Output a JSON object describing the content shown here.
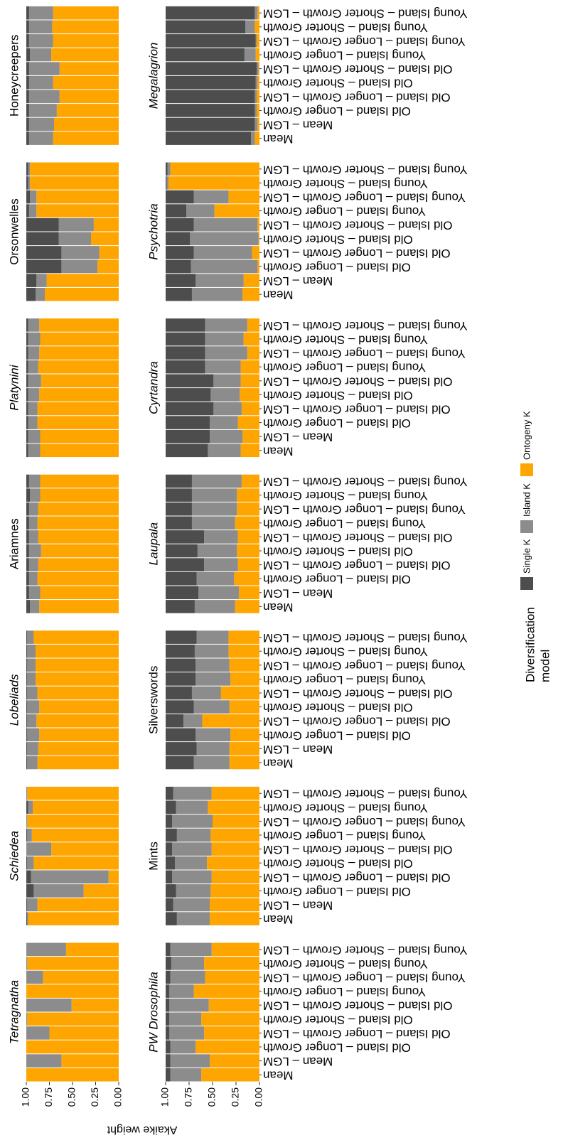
{
  "chart_data": {
    "type": "bar",
    "stacked": true,
    "y_label": "Akaike weight",
    "legend_title": [
      "Diversification",
      "model"
    ],
    "categories": [
      "Mean",
      "Mean – LGM",
      "Old Island – Longer Growth",
      "Old Island – Longer Growth – LGM",
      "Old Island – Shorter Growth",
      "Old Island – Shorter Growth – LGM",
      "Young Island – Longer Growth",
      "Young Island – Longer Growth – LGM",
      "Young Island – Shorter Growth",
      "Young Island – Shorter Growth – LGM"
    ],
    "series": [
      {
        "name": "Single K",
        "color": "#4d4d4d"
      },
      {
        "name": "Island K",
        "color": "#8c8c8c"
      },
      {
        "name": "Ontogeny K",
        "color": "#ffa500"
      }
    ],
    "ylim": [
      0,
      1
    ],
    "yticks": [
      {
        "value": 0,
        "label": "0.00"
      },
      {
        "value": 0.25,
        "label": "0.25"
      },
      {
        "value": 0.5,
        "label": "0.50"
      },
      {
        "value": 0.75,
        "label": "0.75"
      },
      {
        "value": 1,
        "label": "1.00"
      }
    ],
    "facets": [
      {
        "title": "Tetragnatha",
        "italic": true,
        "series": [
          {
            "values": [
              0,
              0,
              0,
              0,
              0,
              0,
              0,
              0,
              0,
              0
            ]
          },
          {
            "values": [
              0,
              0.38,
              0,
              0.25,
              0.01,
              0.49,
              0,
              0.18,
              0.01,
              0.43
            ]
          },
          {
            "values": [
              1,
              0.62,
              1,
              0.75,
              0.99,
              0.51,
              1,
              0.82,
              0.99,
              0.57
            ]
          }
        ]
      },
      {
        "title": "Schiedea",
        "italic": true,
        "series": [
          {
            "values": [
              0.01,
              0.01,
              0.08,
              0.05,
              0.01,
              0,
              0.01,
              0,
              0.02,
              0
            ]
          },
          {
            "values": [
              0.01,
              0.11,
              0.54,
              0.84,
              0.07,
              0.27,
              0.05,
              0.01,
              0.05,
              0.01
            ]
          },
          {
            "values": [
              0.98,
              0.88,
              0.38,
              0.11,
              0.92,
              0.73,
              0.94,
              0.99,
              0.93,
              0.99
            ]
          }
        ]
      },
      {
        "title": "Lobeliads",
        "italic": true,
        "series": [
          {
            "values": [
              0.01,
              0.01,
              0.01,
              0.01,
              0.01,
              0.01,
              0.01,
              0.01,
              0.01,
              0.01
            ]
          },
          {
            "values": [
              0.11,
              0.12,
              0.13,
              0.1,
              0.13,
              0.11,
              0.09,
              0.09,
              0.09,
              0.07
            ]
          },
          {
            "values": [
              0.88,
              0.87,
              0.86,
              0.89,
              0.86,
              0.88,
              0.9,
              0.9,
              0.9,
              0.92
            ]
          }
        ]
      },
      {
        "title": "Ariamnes",
        "italic": false,
        "series": [
          {
            "values": [
              0.04,
              0.03,
              0.03,
              0.03,
              0.03,
              0.03,
              0.03,
              0.03,
              0.04,
              0.03
            ]
          },
          {
            "values": [
              0.1,
              0.12,
              0.09,
              0.1,
              0.13,
              0.1,
              0.09,
              0.1,
              0.11,
              0.12
            ]
          },
          {
            "values": [
              0.86,
              0.85,
              0.88,
              0.87,
              0.84,
              0.87,
              0.88,
              0.87,
              0.85,
              0.85
            ]
          }
        ]
      },
      {
        "title": "Platynini",
        "italic": true,
        "series": [
          {
            "values": [
              0.02,
              0.02,
              0.02,
              0.02,
              0.02,
              0.02,
              0.02,
              0.02,
              0.02,
              0.02
            ]
          },
          {
            "values": [
              0.13,
              0.13,
              0.1,
              0.1,
              0.12,
              0.14,
              0.11,
              0.12,
              0.13,
              0.12
            ]
          },
          {
            "values": [
              0.85,
              0.85,
              0.88,
              0.88,
              0.86,
              0.84,
              0.87,
              0.86,
              0.85,
              0.86
            ]
          }
        ]
      },
      {
        "title": "Orsonwelles",
        "italic": false,
        "series": [
          {
            "values": [
              0.1,
              0.11,
              0.38,
              0.38,
              0.35,
              0.35,
              0.03,
              0.04,
              0.02,
              0.02
            ]
          },
          {
            "values": [
              0.1,
              0.11,
              0.39,
              0.41,
              0.35,
              0.38,
              0.08,
              0.07,
              0.02,
              0.02
            ]
          },
          {
            "values": [
              0.8,
              0.78,
              0.23,
              0.21,
              0.3,
              0.27,
              0.89,
              0.89,
              0.96,
              0.96
            ]
          }
        ]
      },
      {
        "title": "Honeycreepers",
        "italic": false,
        "series": [
          {
            "values": [
              0.03,
              0.03,
              0.03,
              0.03,
              0.03,
              0.03,
              0.04,
              0.03,
              0.03,
              0.03
            ]
          },
          {
            "values": [
              0.26,
              0.27,
              0.3,
              0.33,
              0.26,
              0.33,
              0.23,
              0.26,
              0.25,
              0.26
            ]
          },
          {
            "values": [
              0.71,
              0.7,
              0.67,
              0.64,
              0.71,
              0.64,
              0.73,
              0.71,
              0.72,
              0.71
            ]
          }
        ]
      },
      {
        "title": "PW Drosophila",
        "italic": true,
        "series": [
          {
            "values": [
              0.05,
              0.05,
              0.05,
              0.04,
              0.04,
              0.04,
              0.04,
              0.05,
              0.06,
              0.05
            ]
          },
          {
            "values": [
              0.33,
              0.42,
              0.27,
              0.37,
              0.34,
              0.42,
              0.26,
              0.37,
              0.35,
              0.44
            ]
          },
          {
            "values": [
              0.62,
              0.53,
              0.68,
              0.59,
              0.62,
              0.54,
              0.7,
              0.58,
              0.59,
              0.51
            ]
          }
        ]
      },
      {
        "title": "Mints",
        "italic": false,
        "series": [
          {
            "values": [
              0.12,
              0.08,
              0.11,
              0.07,
              0.1,
              0.07,
              0.12,
              0.07,
              0.11,
              0.08
            ]
          },
          {
            "values": [
              0.35,
              0.39,
              0.37,
              0.42,
              0.34,
              0.42,
              0.36,
              0.43,
              0.34,
              0.41
            ]
          },
          {
            "values": [
              0.53,
              0.53,
              0.52,
              0.51,
              0.56,
              0.51,
              0.52,
              0.5,
              0.55,
              0.51
            ]
          }
        ]
      },
      {
        "title": "Silverswords",
        "italic": false,
        "series": [
          {
            "values": [
              0.3,
              0.33,
              0.32,
              0.19,
              0.3,
              0.28,
              0.32,
              0.32,
              0.31,
              0.33
            ]
          },
          {
            "values": [
              0.38,
              0.35,
              0.37,
              0.2,
              0.38,
              0.31,
              0.37,
              0.36,
              0.36,
              0.34
            ]
          },
          {
            "values": [
              0.32,
              0.32,
              0.31,
              0.61,
              0.32,
              0.41,
              0.31,
              0.32,
              0.33,
              0.33
            ]
          }
        ]
      },
      {
        "title": "Laupala",
        "italic": true,
        "series": [
          {
            "values": [
              0.31,
              0.35,
              0.33,
              0.41,
              0.34,
              0.41,
              0.28,
              0.28,
              0.28,
              0.28
            ]
          },
          {
            "values": [
              0.43,
              0.43,
              0.4,
              0.36,
              0.42,
              0.36,
              0.46,
              0.48,
              0.48,
              0.53
            ]
          },
          {
            "values": [
              0.26,
              0.22,
              0.27,
              0.23,
              0.24,
              0.23,
              0.26,
              0.24,
              0.24,
              0.19
            ]
          }
        ]
      },
      {
        "title": "Cyrtandra",
        "italic": true,
        "series": [
          {
            "values": [
              0.45,
              0.47,
              0.47,
              0.51,
              0.48,
              0.51,
              0.42,
              0.42,
              0.42,
              0.42
            ]
          },
          {
            "values": [
              0.35,
              0.35,
              0.3,
              0.3,
              0.31,
              0.29,
              0.38,
              0.45,
              0.41,
              0.45
            ]
          },
          {
            "values": [
              0.2,
              0.18,
              0.23,
              0.19,
              0.21,
              0.2,
              0.2,
              0.13,
              0.17,
              0.13
            ]
          }
        ]
      },
      {
        "title": "Psychotria",
        "italic": true,
        "series": [
          {
            "values": [
              0.28,
              0.32,
              0.27,
              0.3,
              0.26,
              0.3,
              0.22,
              0.3,
              0.01,
              0.02
            ]
          },
          {
            "values": [
              0.54,
              0.51,
              0.71,
              0.62,
              0.73,
              0.68,
              0.3,
              0.37,
              0.02,
              0.03
            ]
          },
          {
            "values": [
              0.18,
              0.17,
              0.02,
              0.08,
              0.01,
              0.02,
              0.48,
              0.33,
              0.97,
              0.95
            ]
          }
        ]
      },
      {
        "title": "Megalagrion",
        "italic": true,
        "series": [
          {
            "values": [
              0.91,
              0.95,
              0.95,
              0.95,
              0.96,
              0.97,
              0.84,
              0.96,
              0.85,
              0.95
            ]
          },
          {
            "values": [
              0.04,
              0.03,
              0.02,
              0.02,
              0.02,
              0.02,
              0.12,
              0.01,
              0.1,
              0.03
            ]
          },
          {
            "values": [
              0.05,
              0.02,
              0.03,
              0.03,
              0.02,
              0.01,
              0.04,
              0.03,
              0.05,
              0.02
            ]
          }
        ]
      }
    ]
  }
}
